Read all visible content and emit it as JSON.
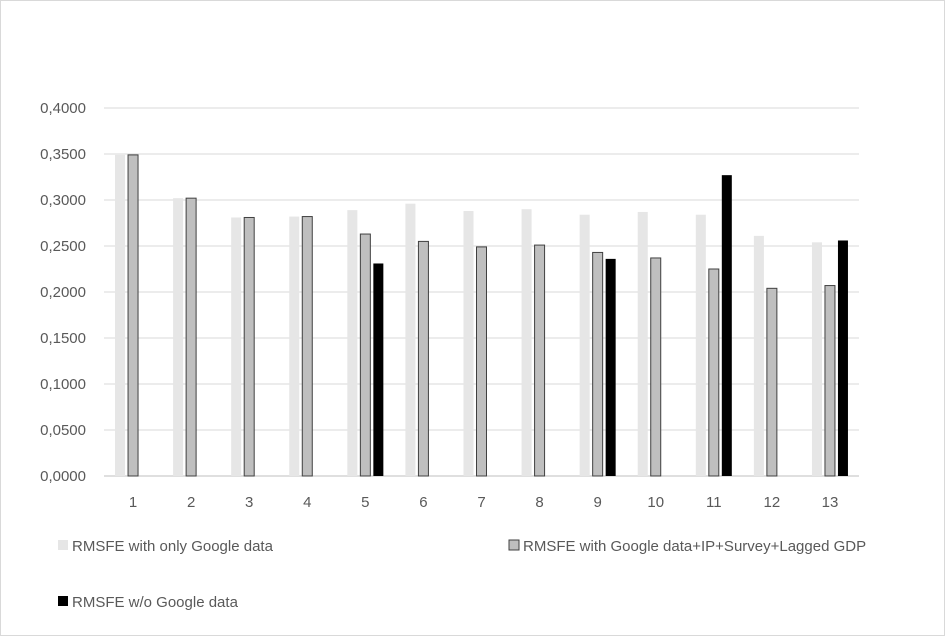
{
  "chart_data": {
    "type": "bar",
    "title": "",
    "xlabel": "",
    "ylabel": "",
    "categories": [
      "1",
      "2",
      "3",
      "4",
      "5",
      "6",
      "7",
      "8",
      "9",
      "10",
      "11",
      "12",
      "13"
    ],
    "ylim": [
      0,
      0.4
    ],
    "y_ticks": [
      "0,0000",
      "0,0500",
      "0,1000",
      "0,1500",
      "0,2000",
      "0,2500",
      "0,3000",
      "0,3500",
      "0,4000"
    ],
    "grid": true,
    "legend_position": "bottom",
    "series": [
      {
        "name": "RMSFE with only Google data",
        "color": "#e6e6e6",
        "values": [
          0.349,
          0.302,
          0.281,
          0.282,
          0.289,
          0.296,
          0.288,
          0.29,
          0.284,
          0.287,
          0.284,
          0.261,
          0.254
        ]
      },
      {
        "name": "RMSFE with Google data+IP+Survey+Lagged GDP",
        "color": "#bfbfbf",
        "stroke": "#404040",
        "values": [
          0.349,
          0.302,
          0.281,
          0.282,
          0.263,
          0.255,
          0.249,
          0.251,
          0.243,
          0.237,
          0.225,
          0.204,
          0.207
        ]
      },
      {
        "name": "RMSFE w/o Google data",
        "color": "#000000",
        "values": [
          null,
          null,
          null,
          null,
          0.231,
          null,
          null,
          null,
          0.236,
          null,
          0.327,
          null,
          0.256
        ]
      }
    ]
  }
}
